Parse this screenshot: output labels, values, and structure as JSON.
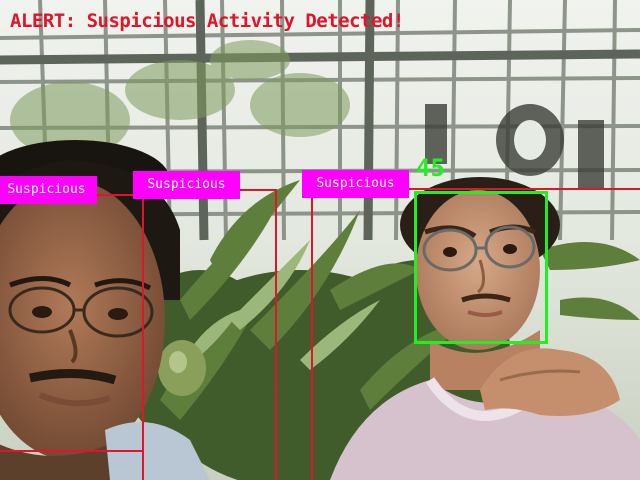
{
  "alert": {
    "text": "ALERT: Suspicious Activity Detected!",
    "color": "#e0142a"
  },
  "detections": [
    {
      "label": "Suspicious",
      "box_color": "#e0142a",
      "tag_bg": "#ff00ff",
      "tag_fg": "#ffffff"
    },
    {
      "label": "Suspicious",
      "box_color": "#e0142a",
      "tag_bg": "#ff00ff",
      "tag_fg": "#ffffff"
    },
    {
      "label": "Suspicious",
      "box_color": "#e0142a",
      "tag_bg": "#ff00ff",
      "tag_fg": "#ffffff"
    }
  ],
  "face_track": {
    "id": "45",
    "color": "#22ee22"
  }
}
